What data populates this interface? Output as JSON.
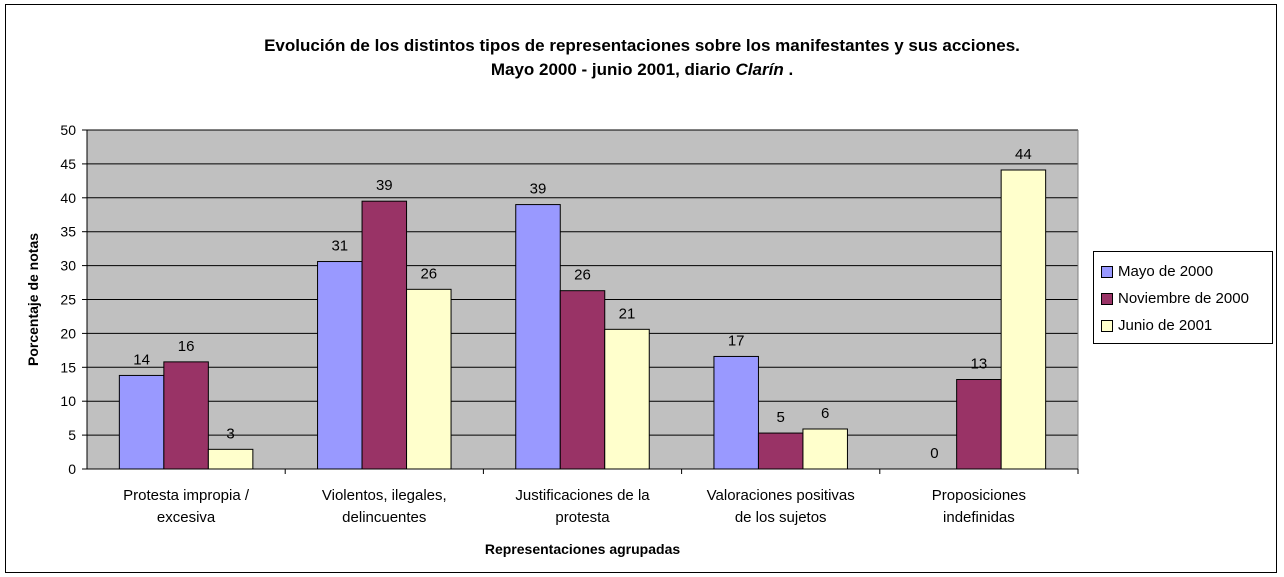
{
  "chart_data": {
    "type": "bar",
    "title_line1": "Evolución de los distintos tipos de representaciones sobre los manifestantes y sus acciones.",
    "title_line2_prefix": "Mayo 2000 - junio 2001, diario ",
    "title_line2_italic": "Clarín",
    "title_line2_suffix": " .",
    "xlabel": "Representaciones agrupadas",
    "ylabel": "Porcentaje de notas",
    "ylim": [
      0,
      50
    ],
    "yticks": [
      "0",
      "5",
      "10",
      "15",
      "20",
      "25",
      "30",
      "35",
      "40",
      "45",
      "50"
    ],
    "grid": true,
    "legend_position": "right",
    "categories": [
      [
        "Protesta impropia /",
        "excesiva"
      ],
      [
        "Violentos, ilegales,",
        "delincuentes"
      ],
      [
        "Justificaciones de la",
        "protesta"
      ],
      [
        "Valoraciones positivas",
        "de los sujetos"
      ],
      [
        "Proposiciones",
        "indefinidas"
      ]
    ],
    "series": [
      {
        "name": "Mayo de 2000",
        "color": "#9999ff",
        "values": [
          13.8,
          30.6,
          39.0,
          16.6,
          0
        ],
        "labels": [
          "14",
          "31",
          "39",
          "17",
          "0"
        ]
      },
      {
        "name": "Noviembre de 2000",
        "color": "#993366",
        "values": [
          15.8,
          39.5,
          26.3,
          5.3,
          13.2
        ],
        "labels": [
          "16",
          "39",
          "26",
          "5",
          "13"
        ]
      },
      {
        "name": "Junio de 2001",
        "color": "#ffffcc",
        "values": [
          2.9,
          26.5,
          20.6,
          5.9,
          44.1
        ],
        "labels": [
          "3",
          "26",
          "21",
          "6",
          "44"
        ]
      }
    ],
    "plot_background": "#c0c0c0"
  }
}
